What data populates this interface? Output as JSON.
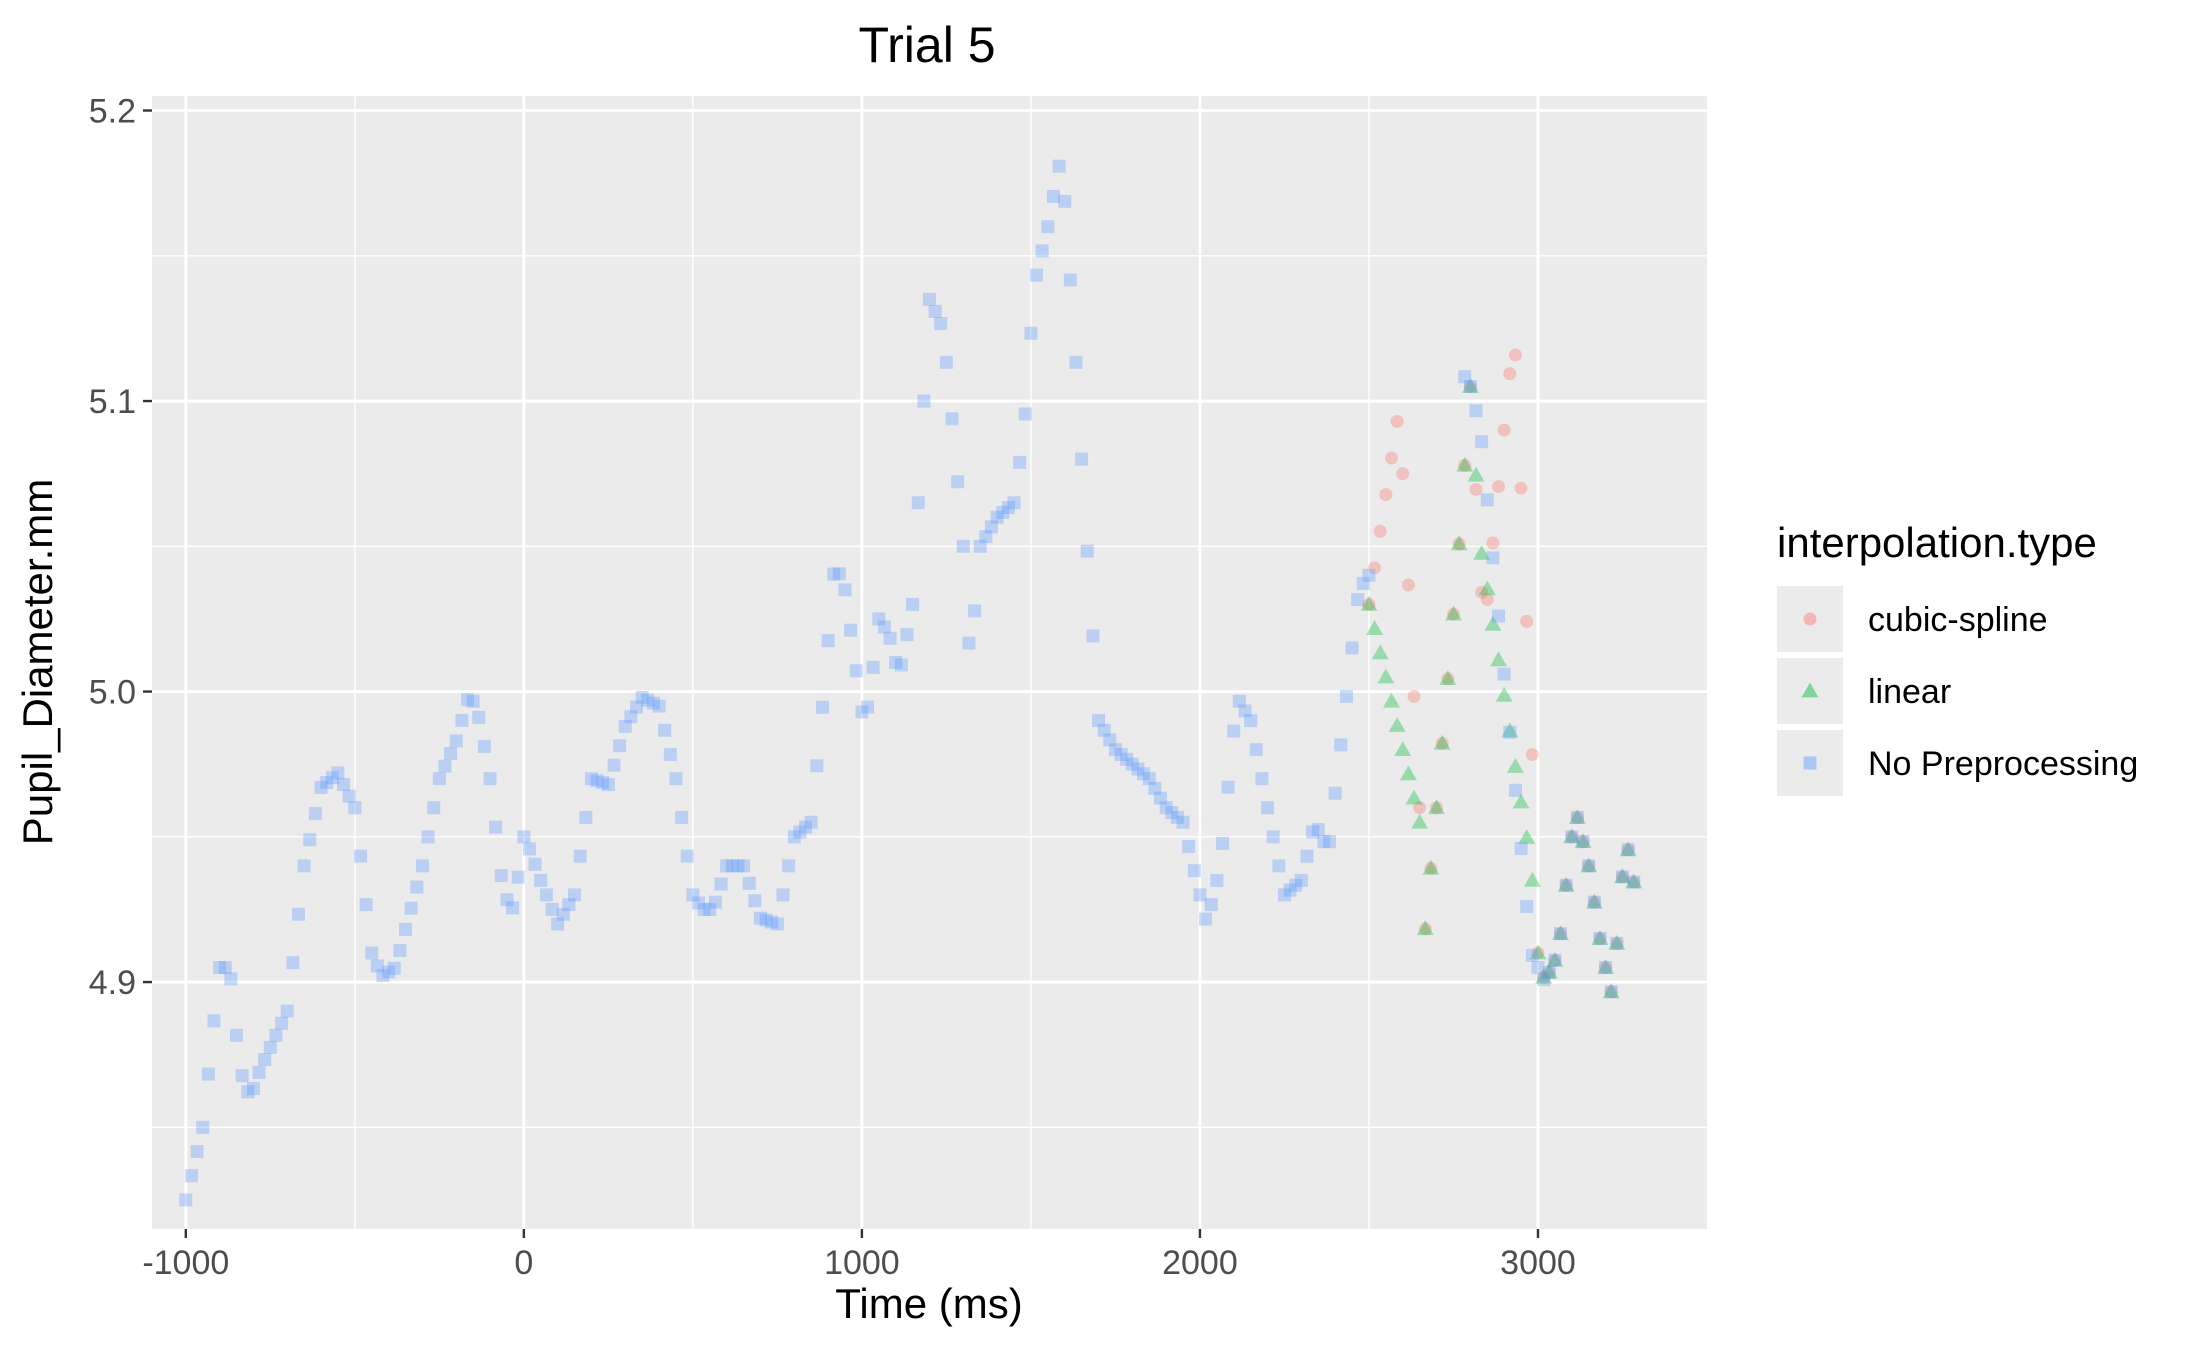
{
  "chart_data": {
    "type": "scatter",
    "title": "Trial 5",
    "xlabel": "Time (ms)",
    "ylabel": "Pupil_Diameter.mm",
    "xlim": [
      -1100,
      3500
    ],
    "ylim": [
      4.815,
      5.205
    ],
    "x_ticks": [
      -1000,
      0,
      1000,
      2000,
      3000
    ],
    "x_tick_labels": [
      "-1000",
      "0",
      "1000",
      "2000",
      "3000"
    ],
    "y_ticks": [
      4.9,
      5.0,
      5.1,
      5.2
    ],
    "y_tick_labels": [
      "4.9",
      "5.0",
      "5.1",
      "5.2"
    ],
    "grid": true,
    "legend": {
      "title": "interpolation.type",
      "placement": "right",
      "entries": [
        "cubic-spline",
        "linear",
        "No Preprocessing"
      ]
    },
    "series": [
      {
        "name": "No Preprocessing",
        "marker": "square",
        "color": "#619CFF",
        "note_step_ms": 16.7,
        "knots": [
          [
            -1000,
            4.825
          ],
          [
            -950,
            4.85
          ],
          [
            -900,
            4.905
          ],
          [
            -870,
            4.905
          ],
          [
            -840,
            4.87
          ],
          [
            -810,
            4.86
          ],
          [
            -780,
            4.87
          ],
          [
            -700,
            4.89
          ],
          [
            -650,
            4.94
          ],
          [
            -600,
            4.967
          ],
          [
            -550,
            4.972
          ],
          [
            -500,
            4.96
          ],
          [
            -450,
            4.91
          ],
          [
            -420,
            4.902
          ],
          [
            -380,
            4.905
          ],
          [
            -300,
            4.94
          ],
          [
            -250,
            4.97
          ],
          [
            -200,
            4.983
          ],
          [
            -160,
            5.0
          ],
          [
            -130,
            4.99
          ],
          [
            -100,
            4.97
          ],
          [
            -60,
            4.93
          ],
          [
            -30,
            4.925
          ],
          [
            0,
            4.95
          ],
          [
            20,
            4.945
          ],
          [
            50,
            4.935
          ],
          [
            100,
            4.92
          ],
          [
            150,
            4.93
          ],
          [
            200,
            4.97
          ],
          [
            250,
            4.968
          ],
          [
            300,
            4.988
          ],
          [
            350,
            4.998
          ],
          [
            400,
            4.995
          ],
          [
            450,
            4.97
          ],
          [
            500,
            4.93
          ],
          [
            530,
            4.925
          ],
          [
            560,
            4.925
          ],
          [
            600,
            4.94
          ],
          [
            650,
            4.94
          ],
          [
            700,
            4.922
          ],
          [
            750,
            4.92
          ],
          [
            800,
            4.95
          ],
          [
            850,
            4.955
          ],
          [
            880,
            4.99
          ],
          [
            920,
            5.045
          ],
          [
            950,
            5.035
          ],
          [
            980,
            5.01
          ],
          [
            1000,
            4.993
          ],
          [
            1020,
            4.995
          ],
          [
            1050,
            5.025
          ],
          [
            1080,
            5.02
          ],
          [
            1110,
            5.005
          ],
          [
            1150,
            5.03
          ],
          [
            1200,
            5.135
          ],
          [
            1240,
            5.125
          ],
          [
            1270,
            5.09
          ],
          [
            1300,
            5.05
          ],
          [
            1320,
            5.01
          ],
          [
            1350,
            5.05
          ],
          [
            1400,
            5.06
          ],
          [
            1450,
            5.065
          ],
          [
            1480,
            5.09
          ],
          [
            1510,
            5.14
          ],
          [
            1550,
            5.16
          ],
          [
            1590,
            5.185
          ],
          [
            1630,
            5.12
          ],
          [
            1660,
            5.06
          ],
          [
            1700,
            4.99
          ],
          [
            1750,
            4.98
          ],
          [
            1800,
            4.975
          ],
          [
            1850,
            4.97
          ],
          [
            1900,
            4.96
          ],
          [
            1950,
            4.955
          ],
          [
            2000,
            4.93
          ],
          [
            2020,
            4.92
          ],
          [
            2060,
            4.94
          ],
          [
            2110,
            4.998
          ],
          [
            2150,
            4.99
          ],
          [
            2200,
            4.96
          ],
          [
            2250,
            4.93
          ],
          [
            2300,
            4.935
          ],
          [
            2340,
            4.955
          ],
          [
            2380,
            4.945
          ],
          [
            2420,
            4.985
          ],
          [
            2470,
            5.035
          ],
          [
            2500,
            5.04
          ],
          [
            2790,
            5.11
          ],
          [
            2830,
            5.09
          ],
          [
            2980,
            4.91
          ],
          [
            3020,
            4.9
          ],
          [
            3060,
            4.91
          ],
          [
            3110,
            4.96
          ],
          [
            3150,
            4.94
          ],
          [
            3190,
            4.91
          ],
          [
            3220,
            4.895
          ],
          [
            3260,
            4.95
          ],
          [
            3290,
            4.93
          ]
        ]
      },
      {
        "name": "linear",
        "marker": "triangle",
        "color": "#00BA38",
        "knots": [
          [
            2500,
            5.03
          ],
          [
            2650,
            4.955
          ],
          [
            2660,
            4.91
          ],
          [
            2700,
            4.96
          ],
          [
            2760,
            5.04
          ],
          [
            2800,
            5.105
          ],
          [
            2830,
            5.05
          ],
          [
            2980,
            4.94
          ],
          [
            3000,
            4.91
          ],
          [
            3020,
            4.9
          ],
          [
            3060,
            4.91
          ],
          [
            3110,
            4.96
          ],
          [
            3150,
            4.94
          ],
          [
            3190,
            4.91
          ],
          [
            3220,
            4.895
          ],
          [
            3260,
            4.95
          ],
          [
            3290,
            4.93
          ]
        ]
      },
      {
        "name": "cubic-spline",
        "marker": "circle",
        "color": "#F8766D",
        "knots": [
          [
            2500,
            5.03
          ],
          [
            2590,
            5.098
          ],
          [
            2650,
            4.96
          ],
          [
            2660,
            4.91
          ],
          [
            2700,
            4.96
          ],
          [
            2760,
            5.04
          ],
          [
            2800,
            5.105
          ],
          [
            2840,
            5.02
          ],
          [
            2930,
            5.125
          ],
          [
            2990,
            4.96
          ],
          [
            3000,
            4.91
          ],
          [
            3020,
            4.9
          ],
          [
            3060,
            4.91
          ],
          [
            3110,
            4.96
          ],
          [
            3150,
            4.94
          ],
          [
            3190,
            4.91
          ],
          [
            3220,
            4.895
          ],
          [
            3260,
            4.95
          ],
          [
            3290,
            4.93
          ]
        ]
      }
    ]
  }
}
